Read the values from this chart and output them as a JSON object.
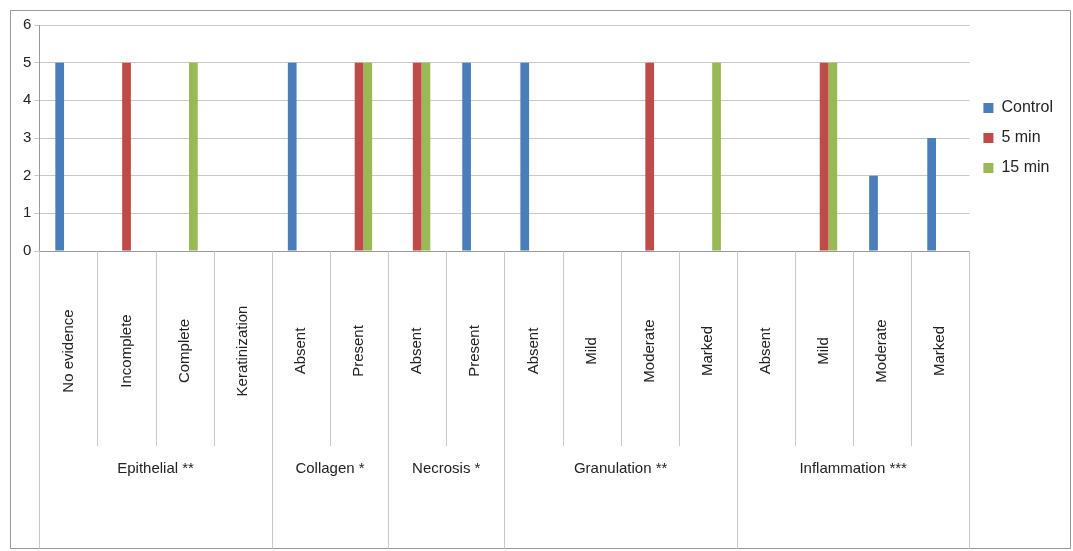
{
  "chart_data": {
    "type": "bar",
    "categories": [
      "No evidence",
      "Incomplete",
      "Complete",
      "Keratinization",
      "Absent",
      "Present",
      "Absent",
      "Present",
      "Absent",
      "Mild",
      "Moderate",
      "Marked",
      "Absent",
      "Mild",
      "Moderate",
      "Marked"
    ],
    "series": [
      {
        "name": "Control",
        "color": "#4a7ebb",
        "values": [
          5,
          0,
          0,
          0,
          5,
          0,
          0,
          5,
          5,
          0,
          0,
          0,
          0,
          0,
          2,
          3
        ]
      },
      {
        "name": "5 min",
        "color": "#be4b48",
        "values": [
          0,
          5,
          0,
          0,
          0,
          5,
          5,
          0,
          0,
          0,
          5,
          0,
          0,
          5,
          0,
          0
        ]
      },
      {
        "name": "15 min",
        "color": "#98b954",
        "values": [
          0,
          0,
          5,
          0,
          0,
          5,
          5,
          0,
          0,
          0,
          0,
          5,
          0,
          5,
          0,
          0
        ]
      }
    ],
    "annotations": [
      "Epithelial **",
      "Collagen *",
      "Necrosis *",
      "Granulation **",
      "Inflammation ***"
    ],
    "ylim": [
      0,
      6
    ],
    "yticks": [
      0,
      1,
      2,
      3,
      4,
      5,
      6
    ],
    "grid": "y",
    "legend": "right"
  }
}
